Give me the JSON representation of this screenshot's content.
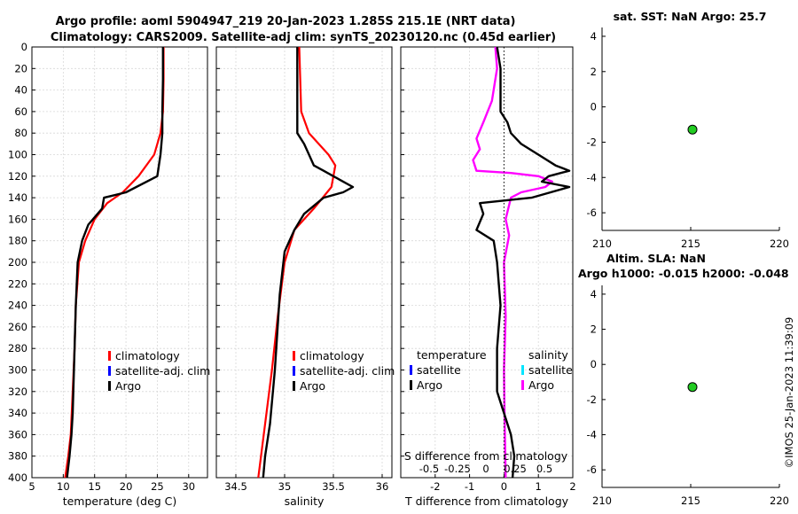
{
  "title_line1": "Argo profile: aoml 5904947_219 20-Jan-2023 1.285S 215.1E (NRT data)",
  "title_line2": "Climatology: CARS2009. Satellite-adj clim: synTS_20230120.nc (0.45d earlier)",
  "sst_title": "sat. SST: NaN Argo: 25.7",
  "sla_title1": "Altim. SLA: NaN",
  "sla_title2": "Argo h1000: -0.015 h2000: -0.048",
  "timestamp": "©IMOS 25-Jan-2023 11:39:09",
  "colors": {
    "climatology": "#ff0000",
    "satellite": "#0000ff",
    "argo": "#000000",
    "sat_salinity": "#00e5ff",
    "argo_salinity": "#ff00ff",
    "marker": "#22cc22"
  },
  "chart_data": [
    {
      "id": "temperature",
      "type": "line",
      "xlabel": "temperature (deg C)",
      "xlim": [
        5,
        33
      ],
      "xticks": [
        "5",
        "10",
        "15",
        "20",
        "25",
        "30"
      ],
      "ylim": [
        400,
        0
      ],
      "yticks": [
        "0",
        "20",
        "40",
        "60",
        "80",
        "100",
        "120",
        "140",
        "160",
        "180",
        "200",
        "220",
        "240",
        "260",
        "280",
        "300",
        "320",
        "340",
        "360",
        "380",
        "400"
      ],
      "legend": [
        "climatology",
        "satellite-adj. clim",
        "Argo"
      ],
      "series": [
        {
          "name": "climatology",
          "color": "#ff0000",
          "points": [
            [
              26,
              0
            ],
            [
              26,
              30
            ],
            [
              25.9,
              60
            ],
            [
              25.5,
              80
            ],
            [
              24.5,
              100
            ],
            [
              22,
              120
            ],
            [
              19.5,
              135
            ],
            [
              17,
              145
            ],
            [
              15,
              160
            ],
            [
              13.5,
              180
            ],
            [
              12.5,
              200
            ],
            [
              12,
              240
            ],
            [
              11.8,
              280
            ],
            [
              11.5,
              320
            ],
            [
              11.2,
              360
            ],
            [
              10.8,
              380
            ],
            [
              10.3,
              400
            ]
          ]
        },
        {
          "name": "Argo",
          "color": "#000000",
          "points": [
            [
              25.9,
              0
            ],
            [
              25.9,
              30
            ],
            [
              25.8,
              60
            ],
            [
              25.8,
              80
            ],
            [
              25.5,
              100
            ],
            [
              25,
              120
            ],
            [
              20,
              135
            ],
            [
              16.5,
              140
            ],
            [
              16.2,
              150
            ],
            [
              14,
              165
            ],
            [
              13,
              180
            ],
            [
              12.3,
              200
            ],
            [
              12,
              240
            ],
            [
              11.8,
              280
            ],
            [
              11.6,
              320
            ],
            [
              11.5,
              340
            ],
            [
              11.3,
              360
            ],
            [
              11,
              380
            ],
            [
              10.6,
              400
            ]
          ]
        }
      ]
    },
    {
      "id": "salinity",
      "type": "line",
      "xlabel": "salinity",
      "xlim": [
        34.3,
        36.1
      ],
      "xticks": [
        "34.5",
        "35",
        "35.5",
        "36"
      ],
      "ylim": [
        400,
        0
      ],
      "legend": [
        "climatology",
        "satellite-adj. clim",
        "Argo"
      ],
      "series": [
        {
          "name": "climatology",
          "color": "#ff0000",
          "points": [
            [
              35.15,
              0
            ],
            [
              35.16,
              30
            ],
            [
              35.17,
              60
            ],
            [
              35.25,
              80
            ],
            [
              35.45,
              100
            ],
            [
              35.52,
              110
            ],
            [
              35.48,
              130
            ],
            [
              35.3,
              150
            ],
            [
              35.1,
              170
            ],
            [
              35,
              200
            ],
            [
              34.93,
              250
            ],
            [
              34.87,
              300
            ],
            [
              34.8,
              350
            ],
            [
              34.73,
              400
            ]
          ]
        },
        {
          "name": "Argo",
          "color": "#000000",
          "points": [
            [
              35.13,
              0
            ],
            [
              35.13,
              60
            ],
            [
              35.13,
              80
            ],
            [
              35.2,
              90
            ],
            [
              35.25,
              100
            ],
            [
              35.3,
              110
            ],
            [
              35.4,
              115
            ],
            [
              35.5,
              120
            ],
            [
              35.6,
              125
            ],
            [
              35.7,
              130
            ],
            [
              35.6,
              135
            ],
            [
              35.4,
              140
            ],
            [
              35.2,
              155
            ],
            [
              35.1,
              170
            ],
            [
              35,
              190
            ],
            [
              34.95,
              230
            ],
            [
              34.9,
              300
            ],
            [
              34.85,
              350
            ],
            [
              34.8,
              380
            ],
            [
              34.78,
              400
            ]
          ]
        }
      ]
    },
    {
      "id": "difference",
      "type": "line",
      "xlabel": "T difference from climatology",
      "top_xlabel": "S difference from climatology",
      "xlim": [
        -3,
        2
      ],
      "xticks": [
        "-2",
        "-1",
        "0",
        "1",
        "2"
      ],
      "top_ticks": [
        "-0.5",
        "-0.25",
        "0",
        "0.25",
        "0.5"
      ],
      "ylim": [
        400,
        0
      ],
      "legend_left_title": "temperature",
      "legend_right_title": "salinity",
      "legend_left": [
        "satellite",
        "Argo"
      ],
      "legend_right": [
        "satellite",
        "Argo"
      ],
      "series": [
        {
          "name": "Argo salinity",
          "color": "#ff00ff",
          "points": [
            [
              -0.25,
              0
            ],
            [
              -0.2,
              20
            ],
            [
              -0.35,
              50
            ],
            [
              -0.6,
              70
            ],
            [
              -0.8,
              85
            ],
            [
              -0.7,
              95
            ],
            [
              -0.9,
              105
            ],
            [
              -0.8,
              115
            ],
            [
              0.2,
              117
            ],
            [
              1,
              120
            ],
            [
              1.4,
              125
            ],
            [
              1.2,
              130
            ],
            [
              0.5,
              135
            ],
            [
              0.2,
              140
            ],
            [
              0.05,
              160
            ],
            [
              0.15,
              175
            ],
            [
              0,
              200
            ],
            [
              0.05,
              250
            ],
            [
              0,
              300
            ],
            [
              0.02,
              350
            ],
            [
              0.05,
              400
            ]
          ]
        },
        {
          "name": "Argo temperature",
          "color": "#000000",
          "points": [
            [
              -0.2,
              0
            ],
            [
              -0.1,
              20
            ],
            [
              -0.1,
              50
            ],
            [
              -0.1,
              60
            ],
            [
              0.1,
              70
            ],
            [
              0.2,
              80
            ],
            [
              0.5,
              90
            ],
            [
              1,
              100
            ],
            [
              1.5,
              110
            ],
            [
              1.9,
              115
            ],
            [
              1.3,
              120
            ],
            [
              1.1,
              125
            ],
            [
              1.9,
              130
            ],
            [
              0.8,
              140
            ],
            [
              -0.7,
              145
            ],
            [
              -0.6,
              155
            ],
            [
              -0.8,
              170
            ],
            [
              -0.3,
              180
            ],
            [
              -0.2,
              200
            ],
            [
              -0.1,
              240
            ],
            [
              -0.2,
              280
            ],
            [
              -0.2,
              320
            ],
            [
              0,
              340
            ],
            [
              0.2,
              360
            ],
            [
              0.3,
              380
            ],
            [
              0.25,
              400
            ]
          ]
        }
      ]
    },
    {
      "id": "sst",
      "type": "scatter",
      "xlim": [
        210,
        220
      ],
      "ylim": [
        -7,
        4.5
      ],
      "xticks": [
        "210",
        "215",
        "220"
      ],
      "yticks": [
        "4",
        "2",
        "0",
        "-2",
        "-4",
        "-6"
      ],
      "points": [
        [
          215.1,
          -1.285
        ]
      ]
    },
    {
      "id": "sla",
      "type": "scatter",
      "xlim": [
        210,
        220
      ],
      "ylim": [
        -7,
        4.5
      ],
      "xticks": [
        "210",
        "215",
        "220"
      ],
      "yticks": [
        "4",
        "2",
        "0",
        "-2",
        "-4",
        "-6"
      ],
      "points": [
        [
          215.1,
          -1.285
        ]
      ]
    }
  ]
}
